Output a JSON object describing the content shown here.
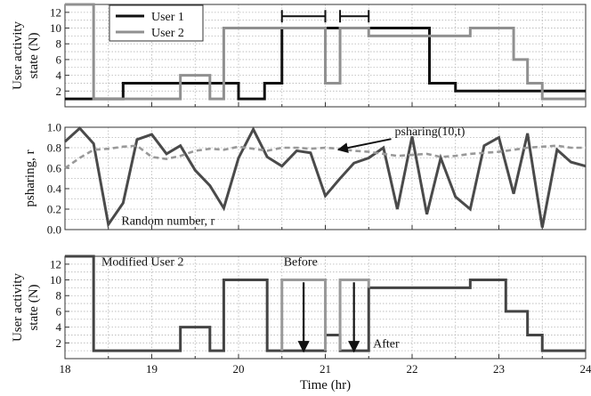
{
  "chart_data": [
    {
      "type": "line",
      "ylabel": [
        "User activity",
        "state (N)"
      ],
      "xlim": [
        18,
        24
      ],
      "ylim": [
        0,
        13
      ],
      "yticks": [
        2,
        4,
        6,
        8,
        10,
        12
      ],
      "grid": true,
      "legend": {
        "placement": "top-left",
        "entries": [
          "User 1",
          "User 2"
        ]
      },
      "series": [
        {
          "name": "User 1",
          "color": "#111111",
          "step": true,
          "x": [
            18,
            18.67,
            20.0,
            20.3,
            20.5,
            22.2,
            22.5,
            23.3,
            24
          ],
          "y": [
            1,
            3,
            1,
            3,
            10,
            3,
            2,
            2,
            2
          ]
        },
        {
          "name": "User 2",
          "color": "#909090",
          "step": true,
          "x": [
            18,
            18.33,
            19.33,
            19.67,
            19.83,
            20.5,
            21.0,
            21.17,
            21.5,
            22.67,
            23.17,
            23.33,
            23.5,
            24
          ],
          "y": [
            13,
            1,
            4,
            1,
            10,
            10,
            3,
            10,
            9,
            10,
            6,
            3,
            1,
            1
          ]
        }
      ],
      "brackets": [
        {
          "x": [
            20.5,
            21.0
          ],
          "y": 11.5
        },
        {
          "x": [
            21.17,
            21.5
          ],
          "y": 11.5
        }
      ]
    },
    {
      "type": "line",
      "ylabel": [
        "psharing, r"
      ],
      "xlim": [
        18,
        24
      ],
      "ylim": [
        0,
        1.0
      ],
      "yticks": [
        0.0,
        0.2,
        0.4,
        0.6,
        0.8,
        1.0
      ],
      "grid": true,
      "series": [
        {
          "name": "Random number, r",
          "color": "#4a4a4a",
          "dashed": false,
          "x": [
            18,
            18.17,
            18.33,
            18.5,
            18.67,
            18.83,
            19.0,
            19.17,
            19.33,
            19.5,
            19.67,
            19.83,
            20.0,
            20.17,
            20.33,
            20.5,
            20.67,
            20.83,
            21.0,
            21.17,
            21.33,
            21.5,
            21.67,
            21.83,
            22.0,
            22.17,
            22.33,
            22.5,
            22.67,
            22.83,
            23.0,
            23.17,
            23.33,
            23.5,
            23.67,
            23.83,
            24.0
          ],
          "y": [
            0.86,
            0.99,
            0.84,
            0.05,
            0.26,
            0.88,
            0.93,
            0.74,
            0.82,
            0.58,
            0.43,
            0.21,
            0.7,
            0.98,
            0.71,
            0.62,
            0.77,
            0.75,
            0.33,
            0.5,
            0.65,
            0.7,
            0.8,
            0.2,
            0.91,
            0.15,
            0.7,
            0.32,
            0.2,
            0.82,
            0.9,
            0.35,
            0.94,
            0.02,
            0.78,
            0.66,
            0.62
          ]
        },
        {
          "name": "psharing(10,t)",
          "color": "#999999",
          "dashed": true,
          "x": [
            18,
            18.17,
            18.33,
            18.5,
            18.67,
            18.83,
            19.0,
            19.17,
            19.33,
            19.5,
            19.67,
            19.83,
            20.0,
            20.17,
            20.33,
            20.5,
            20.67,
            20.83,
            21.0,
            21.17,
            21.33,
            21.5,
            21.67,
            21.83,
            22.0,
            22.17,
            22.33,
            22.5,
            22.67,
            22.83,
            23.0,
            23.17,
            23.33,
            23.5,
            23.67,
            23.83,
            24.0
          ],
          "y": [
            0.6,
            0.7,
            0.78,
            0.79,
            0.81,
            0.82,
            0.71,
            0.69,
            0.72,
            0.77,
            0.79,
            0.78,
            0.81,
            0.79,
            0.77,
            0.8,
            0.8,
            0.79,
            0.8,
            0.79,
            0.77,
            0.76,
            0.74,
            0.72,
            0.73,
            0.74,
            0.71,
            0.72,
            0.74,
            0.75,
            0.76,
            0.78,
            0.8,
            0.81,
            0.82,
            0.8,
            0.8
          ]
        }
      ],
      "annotations": [
        {
          "text": "psharing(10,t)",
          "x": 21.8,
          "y": 0.92,
          "arrow_to": {
            "x": 21.15,
            "y": 0.78
          }
        },
        {
          "text": "Random number, r",
          "x": 18.65,
          "y": 0.05
        }
      ]
    },
    {
      "type": "line",
      "ylabel": [
        "User activity",
        "state (N)"
      ],
      "xlabel": "Time (hr)",
      "xlim": [
        18,
        24
      ],
      "xticks": [
        18,
        19,
        20,
        21,
        22,
        23,
        24
      ],
      "ylim": [
        0,
        13
      ],
      "yticks": [
        2,
        4,
        6,
        8,
        10,
        12
      ],
      "grid": true,
      "series": [
        {
          "name": "Modified User 2",
          "color": "#444444",
          "step": true,
          "x": [
            18,
            18.33,
            19.33,
            19.67,
            19.83,
            20.33,
            21.0,
            21.17,
            21.5,
            22.67,
            23.08,
            23.33,
            23.5,
            24
          ],
          "y": [
            13,
            1,
            4,
            1,
            10,
            1,
            3,
            1,
            9,
            10,
            6,
            3,
            1,
            1
          ]
        },
        {
          "name": "Before",
          "color": "#999999",
          "step": true,
          "x": [
            20.5,
            20.5,
            21.0,
            21.0
          ],
          "y": [
            1,
            10,
            10,
            1
          ]
        },
        {
          "name": "Before",
          "color": "#999999",
          "step": true,
          "x": [
            21.17,
            21.17,
            21.5,
            21.5
          ],
          "y": [
            1,
            10,
            10,
            9
          ]
        }
      ],
      "annotations": [
        {
          "text": "Modified User 2",
          "x": 18.42,
          "y": 11.8
        },
        {
          "text": "Before",
          "x": 20.52,
          "y": 11.8
        },
        {
          "text": "After",
          "x": 21.55,
          "y": 1.4
        }
      ],
      "arrows": [
        {
          "x": 20.75,
          "from": 9.7,
          "to": 0.9
        },
        {
          "x": 21.33,
          "from": 9.7,
          "to": 0.9
        }
      ]
    }
  ]
}
